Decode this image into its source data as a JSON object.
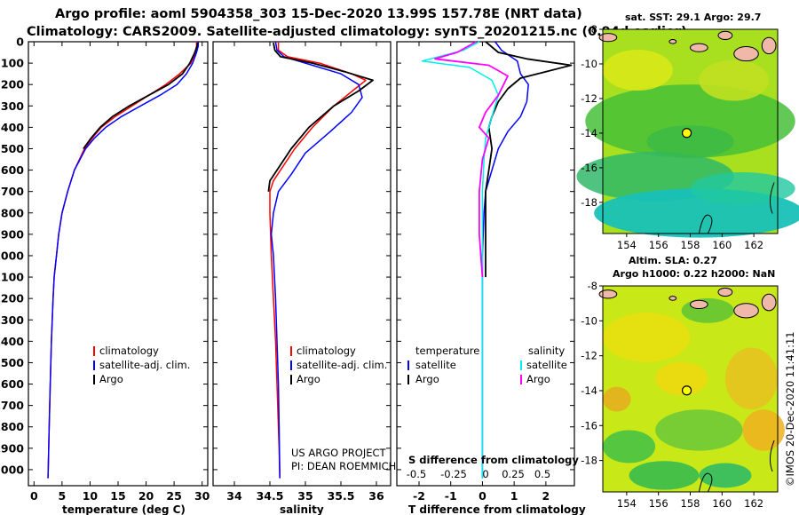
{
  "header": {
    "title_line1": "Argo profile: aoml 5904358_303 15-Dec-2020 13.99S 157.78E (NRT data)",
    "title_line2": "Climatology: CARS2009. Satellite-adjusted climatology: synTS_20201215.nc (0.94d earlier)"
  },
  "colors": {
    "climatology": "#ff0000",
    "satellite": "#0000ff",
    "argo": "#000000",
    "salinity_satellite": "#00eeee",
    "salinity_argo": "#ff00ff"
  },
  "chart_data": [
    {
      "type": "line",
      "name": "temperature-profile",
      "xlabel": "temperature (deg C)",
      "ylabel": "depth",
      "xlim": [
        -1,
        31
      ],
      "ylim": [
        2075,
        0
      ],
      "x_ticks": [
        "0",
        "5",
        "10",
        "15",
        "20",
        "25",
        "30"
      ],
      "y_ticks": [
        "0",
        "100",
        "200",
        "300",
        "400",
        "500",
        "600",
        "700",
        "800",
        "900",
        "1000",
        "1100",
        "1200",
        "1300",
        "1400",
        "1500",
        "1600",
        "1700",
        "1800",
        "1900",
        "2000"
      ],
      "legend": [
        "climatology",
        "satellite-adj. clim.",
        "Argo"
      ],
      "series": [
        {
          "name": "climatology",
          "x": [
            29.0,
            29.0,
            28.8,
            28.0,
            26.0,
            23.5,
            20.5,
            17.5,
            14.5,
            12.0,
            10.4,
            9.0,
            7.2,
            6.0,
            5.0,
            4.4,
            4.0,
            3.6,
            3.4,
            3.1,
            2.9,
            2.7,
            2.5
          ],
          "y": [
            0,
            20,
            50,
            100,
            150,
            200,
            250,
            300,
            350,
            400,
            450,
            500,
            600,
            700,
            800,
            900,
            1000,
            1100,
            1200,
            1400,
            1600,
            1800,
            2040
          ]
        },
        {
          "name": "satellite-adj. clim.",
          "x": [
            29.3,
            29.3,
            29.0,
            28.3,
            27.2,
            25.5,
            22.5,
            19.0,
            15.6,
            12.8,
            10.8,
            9.2,
            7.2,
            6.0,
            5.0,
            4.4,
            4.0,
            3.6,
            3.4,
            3.1,
            2.9,
            2.7,
            2.5
          ],
          "y": [
            0,
            20,
            50,
            100,
            150,
            200,
            250,
            300,
            350,
            400,
            450,
            500,
            600,
            700,
            800,
            900,
            1000,
            1100,
            1200,
            1400,
            1600,
            1800,
            2040
          ]
        },
        {
          "name": "Argo",
          "x": [
            29.2,
            29.1,
            28.7,
            27.8,
            26.5,
            24.0,
            20.5,
            17.0,
            14.0,
            11.8,
            10.2,
            8.8
          ],
          "y": [
            5,
            20,
            50,
            100,
            150,
            200,
            250,
            300,
            350,
            400,
            450,
            500
          ]
        }
      ]
    },
    {
      "type": "line",
      "name": "salinity-profile",
      "xlabel": "salinity",
      "xlim": [
        33.7,
        36.2
      ],
      "ylim": [
        2075,
        0
      ],
      "x_ticks": [
        "34",
        "34.5",
        "35",
        "35.5",
        "36"
      ],
      "legend": [
        "climatology",
        "satellite-adj. clim.",
        "Argo"
      ],
      "series": [
        {
          "name": "climatology",
          "x": [
            34.62,
            34.62,
            34.75,
            35.2,
            35.65,
            35.85,
            35.7,
            35.4,
            35.1,
            34.85,
            34.65,
            34.55,
            34.5,
            34.5,
            34.52,
            34.55,
            34.58,
            34.6,
            34.62,
            34.63,
            34.64
          ],
          "y": [
            0,
            40,
            70,
            100,
            150,
            180,
            220,
            300,
            400,
            500,
            600,
            650,
            700,
            800,
            1000,
            1200,
            1400,
            1600,
            1800,
            1900,
            2040
          ]
        },
        {
          "name": "satellite-adj. clim.",
          "x": [
            34.58,
            34.6,
            34.7,
            35.0,
            35.5,
            35.75,
            35.8,
            35.65,
            35.35,
            35.0,
            34.8,
            34.62,
            34.55,
            34.52,
            34.55,
            34.58,
            34.6,
            34.62,
            34.63,
            34.64
          ],
          "y": [
            0,
            40,
            70,
            100,
            150,
            200,
            260,
            330,
            420,
            520,
            620,
            700,
            800,
            900,
            1000,
            1200,
            1400,
            1600,
            1800,
            2040
          ]
        },
        {
          "name": "Argo",
          "x": [
            34.55,
            34.57,
            34.65,
            35.1,
            35.55,
            35.95,
            35.75,
            35.4,
            35.05,
            34.8,
            34.6,
            34.5,
            34.48
          ],
          "y": [
            5,
            40,
            70,
            100,
            140,
            180,
            230,
            300,
            400,
            500,
            600,
            650,
            700
          ]
        }
      ]
    },
    {
      "type": "line",
      "name": "difference-profile",
      "xlabel": "T difference from climatology",
      "x2label": "S difference from climatology",
      "xlim": [
        -2.7,
        2.9
      ],
      "ylim": [
        2075,
        0
      ],
      "x_ticks": [
        "-2",
        "-1",
        "0",
        "1",
        "2"
      ],
      "x2_ticks": [
        "-0.5",
        "-0.25",
        "0",
        "0.25",
        "0.5"
      ],
      "legend_temperature_title": "temperature",
      "legend_salinity_title": "salinity",
      "legend_entries": [
        "satellite",
        "Argo"
      ],
      "series": [
        {
          "name": "temperature satellite",
          "x": [
            0.4,
            0.6,
            1.1,
            1.2,
            1.45,
            1.4,
            1.2,
            0.8,
            0.5,
            0.3,
            0.1,
            0.05,
            0.0,
            0.0,
            0.0
          ],
          "y": [
            0,
            40,
            90,
            150,
            200,
            280,
            350,
            420,
            500,
            600,
            700,
            800,
            1000,
            1500,
            2040
          ]
        },
        {
          "name": "temperature Argo",
          "x": [
            0.1,
            0.5,
            1.4,
            2.8,
            2.0,
            1.2,
            0.8,
            0.5,
            0.3,
            0.2,
            0.3,
            0.2,
            0.1,
            0.1,
            0.1,
            0.1
          ],
          "y": [
            0,
            50,
            80,
            110,
            140,
            170,
            220,
            280,
            350,
            400,
            500,
            600,
            700,
            900,
            1000,
            1100
          ]
        },
        {
          "name": "salinity satellite",
          "x": [
            -0.1,
            -0.6,
            -1.9,
            -0.4,
            0.3,
            0.5,
            0.3,
            0.2,
            0.1,
            0.05,
            0.0,
            0.0,
            0.0,
            0.0
          ],
          "y": [
            0,
            40,
            90,
            120,
            180,
            250,
            350,
            400,
            450,
            550,
            700,
            1000,
            1500,
            2040
          ]
        },
        {
          "name": "salinity Argo",
          "x": [
            -0.2,
            -0.8,
            -1.5,
            0.2,
            0.8,
            0.5,
            0.1,
            -0.1,
            0.2,
            0.0,
            -0.1,
            -0.1,
            0.0
          ],
          "y": [
            0,
            50,
            80,
            110,
            160,
            250,
            330,
            400,
            450,
            550,
            700,
            900,
            1100
          ]
        }
      ]
    },
    {
      "type": "heatmap",
      "name": "sst-map",
      "title": "sat. SST: 29.1 Argo: 29.7",
      "x_ticks": [
        "154",
        "156",
        "158",
        "160",
        "162"
      ],
      "y_ticks": [
        "-8",
        "-10",
        "-12",
        "-14",
        "-16",
        "-18"
      ],
      "xlim": [
        152.5,
        163.5
      ],
      "ylim": [
        -19.8,
        -8
      ],
      "marker": {
        "lon": 157.78,
        "lat": -13.99
      }
    },
    {
      "type": "heatmap",
      "name": "sla-map",
      "title1": "Altim. SLA: 0.27",
      "title2": "Argo h1000: 0.22 h2000: NaN",
      "x_ticks": [
        "154",
        "156",
        "158",
        "160",
        "162"
      ],
      "y_ticks": [
        "-8",
        "-10",
        "-12",
        "-14",
        "-16",
        "-18"
      ],
      "xlim": [
        152.5,
        163.5
      ],
      "ylim": [
        -19.8,
        -8
      ],
      "marker": {
        "lon": 157.78,
        "lat": -13.99
      }
    }
  ],
  "annotations": {
    "project_line1": "US ARGO PROJECT",
    "project_line2": "PI: DEAN ROEMMICH",
    "credit": "©IMOS 20-Dec-2020 11:41:11"
  }
}
